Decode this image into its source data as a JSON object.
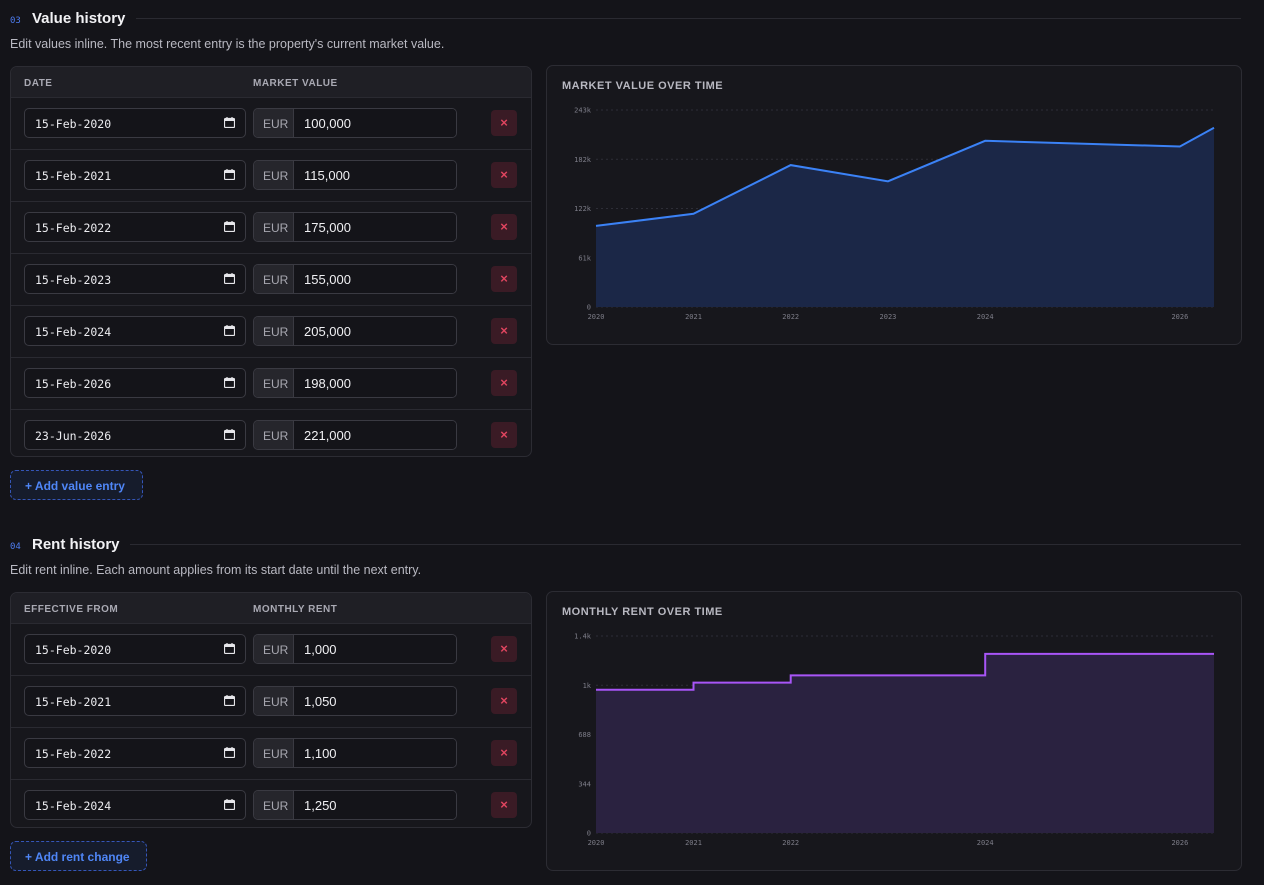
{
  "value_section": {
    "number": "03",
    "title": "Value history",
    "description": "Edit values inline. The most recent entry is the property's current market value.",
    "col_date": "DATE",
    "col_value": "MARKET VALUE",
    "rows": [
      {
        "date": "15-Feb-2020",
        "currency": "EUR",
        "amount": "100,000"
      },
      {
        "date": "15-Feb-2021",
        "currency": "EUR",
        "amount": "115,000"
      },
      {
        "date": "15-Feb-2022",
        "currency": "EUR",
        "amount": "175,000"
      },
      {
        "date": "15-Feb-2023",
        "currency": "EUR",
        "amount": "155,000"
      },
      {
        "date": "15-Feb-2024",
        "currency": "EUR",
        "amount": "205,000"
      },
      {
        "date": "15-Feb-2026",
        "currency": "EUR",
        "amount": "198,000"
      },
      {
        "date": "23-Jun-2026",
        "currency": "EUR",
        "amount": "221,000"
      }
    ],
    "delete_label": "×",
    "add_label": "+ Add value entry"
  },
  "rent_section": {
    "number": "04",
    "title": "Rent history",
    "description": "Edit rent inline. Each amount applies from its start date until the next entry.",
    "col_date": "EFFECTIVE FROM",
    "col_value": "MONTHLY RENT",
    "rows": [
      {
        "date": "15-Feb-2020",
        "currency": "EUR",
        "amount": "1,000"
      },
      {
        "date": "15-Feb-2021",
        "currency": "EUR",
        "amount": "1,050"
      },
      {
        "date": "15-Feb-2022",
        "currency": "EUR",
        "amount": "1,100"
      },
      {
        "date": "15-Feb-2024",
        "currency": "EUR",
        "amount": "1,250"
      }
    ],
    "delete_label": "×",
    "add_label": "+ Add rent change"
  },
  "icons": {
    "date": "calendar-icon",
    "delete": "close-icon"
  },
  "colors": {
    "value_line": "#3b82f6",
    "value_fill": "#1b2747",
    "rent_line": "#a855f7",
    "rent_fill": "#2a2240",
    "delete": "#e0455f",
    "accent": "#4f86f7"
  },
  "chart_data": [
    {
      "type": "area",
      "title": "MARKET VALUE OVER TIME",
      "x": [
        "2020-02-15",
        "2021-02-15",
        "2022-02-15",
        "2023-02-15",
        "2024-02-15",
        "2026-02-15",
        "2026-06-23"
      ],
      "series": [
        {
          "values": [
            100000,
            115000,
            175000,
            155000,
            205000,
            198000,
            221000
          ]
        }
      ],
      "xtick_labels": [
        "2020",
        "2021",
        "2022",
        "2023",
        "2024",
        "2026"
      ],
      "ytick_labels": [
        "0",
        "61k",
        "122k",
        "182k",
        "243k"
      ],
      "ylim": [
        0,
        243000
      ],
      "grid": true
    },
    {
      "type": "area",
      "step": true,
      "title": "MONTHLY RENT OVER TIME",
      "x": [
        "2020-02-15",
        "2021-02-15",
        "2022-02-15",
        "2024-02-15",
        "2026-06-23"
      ],
      "series": [
        {
          "values": [
            1000,
            1050,
            1100,
            1250,
            1250
          ]
        }
      ],
      "xtick_labels": [
        "2020",
        "2021",
        "2022",
        "2024",
        "2026"
      ],
      "ytick_labels": [
        "0",
        "344",
        "688",
        "1k",
        "1.4k"
      ],
      "ylim": [
        0,
        1375
      ],
      "grid": true
    }
  ]
}
